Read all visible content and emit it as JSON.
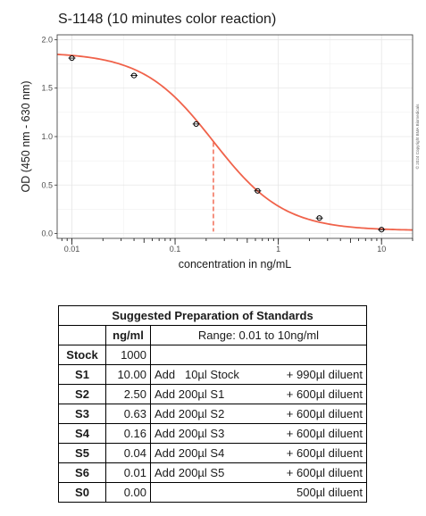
{
  "chart_data": {
    "type": "line",
    "title": "S-1148 (10 minutes color reaction)",
    "xlabel": "concentration in ng/mL",
    "ylabel": "OD (450 nm - 630 nm)",
    "x_scale": "log",
    "xlim": [
      0.0072,
      20
    ],
    "ylim": [
      -0.05,
      2.05
    ],
    "x_ticks": [
      0.01,
      0.1,
      1,
      10
    ],
    "x_tick_labels": [
      "0.01",
      "0.1",
      "1",
      "10"
    ],
    "y_ticks": [
      0,
      0.5,
      1,
      1.5,
      2
    ],
    "y_tick_labels": [
      "0.0",
      "0.5",
      "1.0",
      "1.5",
      "2.0"
    ],
    "grid": true,
    "points": {
      "x": [
        0.01,
        0.04,
        0.16,
        0.63,
        2.5,
        10
      ],
      "y": [
        1.81,
        1.63,
        1.13,
        0.44,
        0.16,
        0.04
      ]
    },
    "fit_curve": {
      "color": "#f0624a",
      "top": 1.87,
      "bottom": 0.03,
      "ec50": 0.235,
      "hill": 1.27,
      "x_range": [
        0.0072,
        20
      ]
    },
    "ec50_line": {
      "x": 0.235,
      "y_top": 0.94,
      "y_bottom": 0.02,
      "color": "#f0624a",
      "style": "dashed"
    },
    "copyright": "© 2024 Copyright BMA Biomedicals"
  },
  "table": {
    "title": "Suggested Preparation of Standards",
    "unit_header": "ng/ml",
    "range_header": "Range: 0.01 to 10ng/ml",
    "rows": [
      {
        "name": "Stock",
        "conc": "1000",
        "add": "",
        "diluent": ""
      },
      {
        "name": "S1",
        "conc": "10.00",
        "add": "Add   10µl Stock",
        "diluent": "+ 990µl diluent"
      },
      {
        "name": "S2",
        "conc": "2.50",
        "add": "Add 200µl S1",
        "diluent": "+ 600µl diluent"
      },
      {
        "name": "S3",
        "conc": "0.63",
        "add": "Add 200µl S2",
        "diluent": "+ 600µl diluent"
      },
      {
        "name": "S4",
        "conc": "0.16",
        "add": "Add 200µl S3",
        "diluent": "+ 600µl diluent"
      },
      {
        "name": "S5",
        "conc": "0.04",
        "add": "Add 200µl S4",
        "diluent": "+ 600µl diluent"
      },
      {
        "name": "S6",
        "conc": "0.01",
        "add": "Add 200µl S5",
        "diluent": "+ 600µl diluent"
      },
      {
        "name": "S0",
        "conc": "0.00",
        "add": "",
        "diluent": "500µl diluent"
      }
    ]
  }
}
